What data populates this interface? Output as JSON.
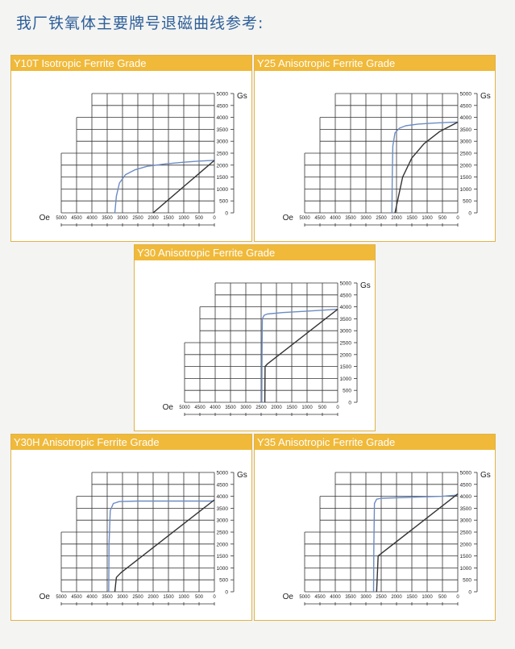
{
  "page": {
    "title": "我厂铁氧体主要牌号退磁曲线参考:"
  },
  "colors": {
    "header": "#f0b93a",
    "title": "#2d5f9a",
    "curve_b": "#6c8cc4",
    "curve_j": "#333333"
  },
  "chart_data": [
    {
      "type": "line",
      "title": "Y10T Isotropic Ferrite Grade",
      "xlabel": "Oe",
      "ylabel": "Gs",
      "x_ticks": [
        5000,
        4500,
        4000,
        3500,
        3000,
        2500,
        2000,
        1500,
        1000,
        500,
        0
      ],
      "y_ticks": [
        0,
        500,
        1000,
        1500,
        2000,
        2500,
        3000,
        3500,
        4000,
        4500,
        5000
      ],
      "xlim": [
        5000,
        0
      ],
      "ylim": [
        0,
        5000
      ],
      "grid": true,
      "series": [
        {
          "x": [
            3250,
            3200,
            3100,
            2900,
            2600,
            2200,
            1600,
            1000,
            500,
            0
          ],
          "y": [
            0,
            700,
            1250,
            1600,
            1800,
            1950,
            2050,
            2120,
            2170,
            2200
          ]
        },
        {
          "x": [
            2000,
            1500,
            1000,
            500,
            0
          ],
          "y": [
            0,
            550,
            1100,
            1650,
            2200
          ]
        }
      ]
    },
    {
      "type": "line",
      "title": "Y25 Anisotropic Ferrite Grade",
      "xlabel": "Oe",
      "ylabel": "Gs",
      "x_ticks": [
        5000,
        4500,
        4000,
        3500,
        3000,
        2500,
        2000,
        1500,
        1000,
        500,
        0
      ],
      "y_ticks": [
        0,
        500,
        1000,
        1500,
        2000,
        2500,
        3000,
        3500,
        4000,
        4500,
        5000
      ],
      "xlim": [
        5000,
        0
      ],
      "ylim": [
        0,
        5000
      ],
      "grid": true,
      "series": [
        {
          "x": [
            2150,
            2140,
            2120,
            2050,
            1900,
            1700,
            1300,
            800,
            300,
            0
          ],
          "y": [
            0,
            1500,
            2800,
            3350,
            3550,
            3650,
            3720,
            3760,
            3790,
            3800
          ]
        },
        {
          "x": [
            2050,
            1950,
            1800,
            1500,
            1100,
            600,
            0
          ],
          "y": [
            0,
            600,
            1500,
            2300,
            2900,
            3400,
            3800
          ]
        }
      ]
    },
    {
      "type": "line",
      "title": "Y30 Anisotropic Ferrite Grade",
      "xlabel": "Oe",
      "ylabel": "Gs",
      "x_ticks": [
        5000,
        4500,
        4000,
        3500,
        3000,
        2500,
        2000,
        1500,
        1000,
        500,
        0
      ],
      "y_ticks": [
        0,
        500,
        1000,
        1500,
        2000,
        2500,
        3000,
        3500,
        4000,
        4500,
        5000
      ],
      "xlim": [
        5000,
        0
      ],
      "ylim": [
        0,
        5000
      ],
      "grid": true,
      "series": [
        {
          "x": [
            2480,
            2470,
            2460,
            2400,
            2300,
            1800,
            1000,
            0
          ],
          "y": [
            0,
            2000,
            3500,
            3650,
            3700,
            3760,
            3820,
            3900
          ]
        },
        {
          "x": [
            2380,
            2370,
            2300,
            0
          ],
          "y": [
            0,
            1500,
            1600,
            3900
          ]
        }
      ]
    },
    {
      "type": "line",
      "title": "Y30H Anisotropic Ferrite Grade",
      "xlabel": "Oe",
      "ylabel": "Gs",
      "x_ticks": [
        5000,
        4500,
        4000,
        3500,
        3000,
        2500,
        2000,
        1500,
        1000,
        500,
        0
      ],
      "y_ticks": [
        0,
        500,
        1000,
        1500,
        2000,
        2500,
        3000,
        3500,
        4000,
        4500,
        5000
      ],
      "xlim": [
        5000,
        0
      ],
      "ylim": [
        0,
        5000
      ],
      "grid": true,
      "series": [
        {
          "x": [
            3450,
            3440,
            3400,
            3300,
            3100,
            2500,
            1500,
            500,
            0
          ],
          "y": [
            0,
            2000,
            3400,
            3700,
            3780,
            3800,
            3800,
            3800,
            3800
          ]
        },
        {
          "x": [
            3250,
            3200,
            3050,
            0
          ],
          "y": [
            0,
            600,
            800,
            3850
          ]
        }
      ]
    },
    {
      "type": "line",
      "title": "Y35 Anisotropic Ferrite Grade",
      "xlabel": "Oe",
      "ylabel": "Gs",
      "x_ticks": [
        5000,
        4500,
        4000,
        3500,
        3000,
        2500,
        2000,
        1500,
        1000,
        500,
        0
      ],
      "y_ticks": [
        0,
        500,
        1000,
        1500,
        2000,
        2500,
        3000,
        3500,
        4000,
        4500,
        5000
      ],
      "xlim": [
        5000,
        0
      ],
      "ylim": [
        0,
        5000
      ],
      "grid": true,
      "series": [
        {
          "x": [
            2750,
            2740,
            2720,
            2650,
            2500,
            1500,
            500,
            0
          ],
          "y": [
            0,
            2000,
            3700,
            3880,
            3920,
            3960,
            4000,
            4050
          ]
        },
        {
          "x": [
            2650,
            2600,
            2500,
            0
          ],
          "y": [
            0,
            1500,
            1600,
            4100
          ]
        }
      ]
    }
  ]
}
